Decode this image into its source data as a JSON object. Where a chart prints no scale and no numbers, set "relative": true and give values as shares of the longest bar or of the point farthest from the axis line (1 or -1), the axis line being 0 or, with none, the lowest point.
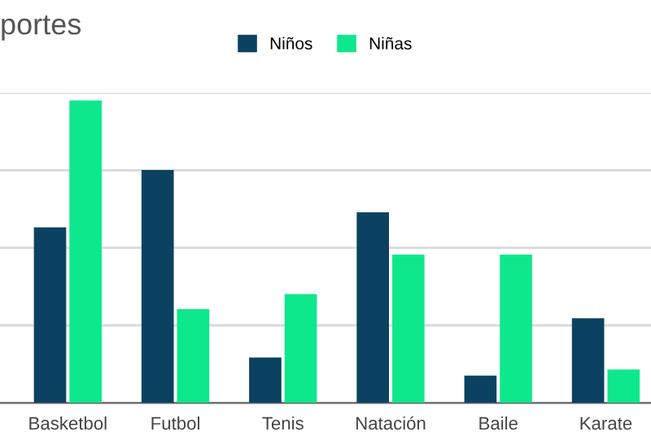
{
  "chart_data": {
    "type": "bar",
    "title": "portes",
    "relative": true,
    "grid": "y",
    "legend": "top",
    "categories": [
      "Basketbol",
      "Futbol",
      "Tenis",
      "Natación",
      "Baile",
      "Karate"
    ],
    "series": [
      {
        "name": "Niños",
        "color": "#0c4261",
        "values": [
          0.58,
          0.77,
          0.15,
          0.63,
          0.09,
          0.28
        ]
      },
      {
        "name": "Niñas",
        "color": "#0ee88c",
        "values": [
          1.0,
          0.31,
          0.36,
          0.49,
          0.49,
          0.11
        ]
      }
    ]
  }
}
